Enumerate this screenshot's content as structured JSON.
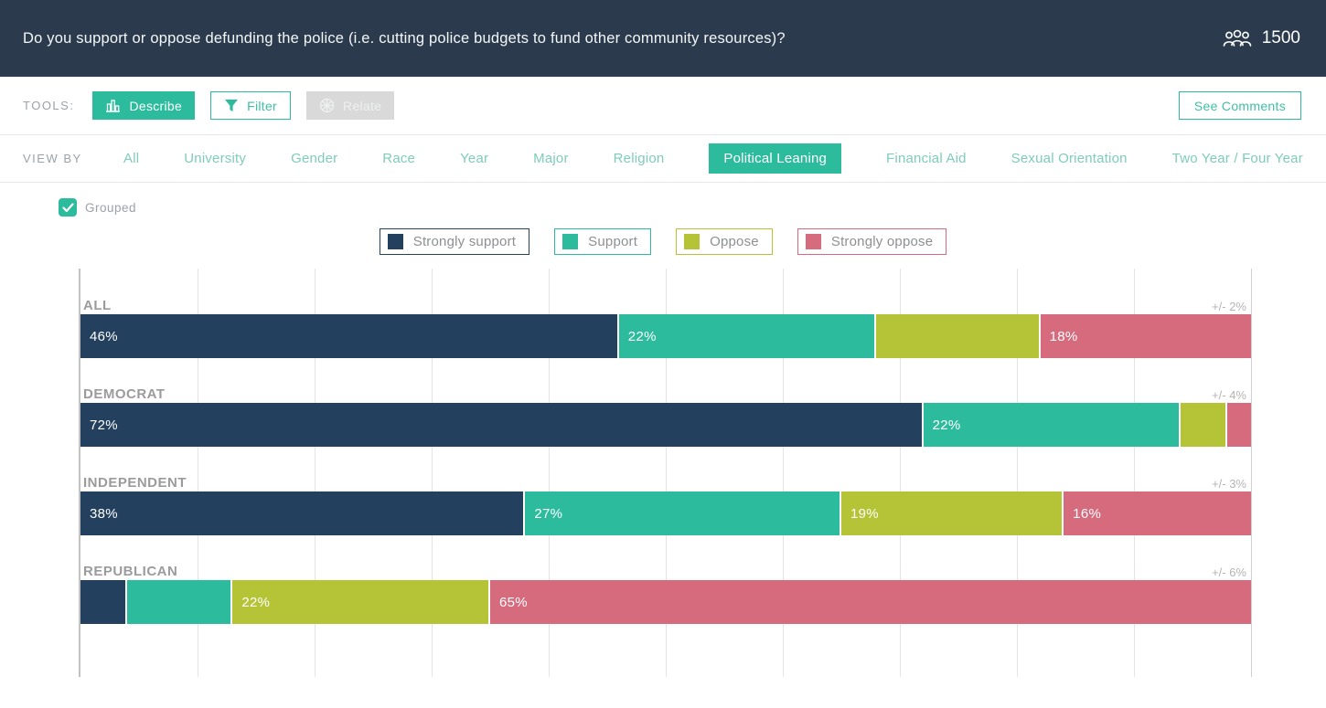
{
  "header": {
    "question": "Do you support or oppose defunding the police (i.e. cutting police budgets to fund other community resources)?",
    "respondent_count": "1500"
  },
  "toolbar": {
    "label": "TOOLS:",
    "describe": {
      "label": "Describe",
      "state": "active"
    },
    "filter": {
      "label": "Filter",
      "state": "enabled"
    },
    "relate": {
      "label": "Relate",
      "state": "disabled"
    },
    "see_comments": {
      "label": "See Comments"
    }
  },
  "view_by": {
    "label": "VIEW BY",
    "options": [
      {
        "label": "All",
        "selected": false
      },
      {
        "label": "University",
        "selected": false
      },
      {
        "label": "Gender",
        "selected": false
      },
      {
        "label": "Race",
        "selected": false
      },
      {
        "label": "Year",
        "selected": false
      },
      {
        "label": "Major",
        "selected": false
      },
      {
        "label": "Religion",
        "selected": false
      },
      {
        "label": "Political Leaning",
        "selected": true
      },
      {
        "label": "Financial Aid",
        "selected": false
      },
      {
        "label": "Sexual Orientation",
        "selected": false
      },
      {
        "label": "Two Year / Four Year",
        "selected": false
      }
    ]
  },
  "grouped_checkbox": {
    "label": "Grouped",
    "checked": true
  },
  "colors": {
    "header_bg": "#2b3b4d",
    "accent_teal": "#2cbc9d",
    "strongly_support": "#23415e",
    "support": "#2cbc9d",
    "oppose": "#b5c336",
    "strongly_oppose": "#d76b7e"
  },
  "chart_data": {
    "type": "bar",
    "subtype": "horizontal-stacked",
    "unit": "%",
    "axis": {
      "min": 0,
      "max": 100,
      "gridline_step": 10,
      "grid": true
    },
    "legend_position": "top-center",
    "legend": [
      {
        "label": "Strongly support",
        "color": "#23415e"
      },
      {
        "label": "Support",
        "color": "#2cbc9d"
      },
      {
        "label": "Oppose",
        "color": "#b5c336"
      },
      {
        "label": "Strongly oppose",
        "color": "#d76b7e"
      }
    ],
    "rows": [
      {
        "category": "ALL",
        "margin_of_error": "+/- 2%",
        "values": [
          {
            "segment": "Strongly support",
            "value": 46,
            "label": "46%"
          },
          {
            "segment": "Support",
            "value": 22,
            "label": "22%"
          },
          {
            "segment": "Oppose",
            "value": 14,
            "label": ""
          },
          {
            "segment": "Strongly oppose",
            "value": 18,
            "label": "18%"
          }
        ]
      },
      {
        "category": "DEMOCRAT",
        "margin_of_error": "+/- 4%",
        "values": [
          {
            "segment": "Strongly support",
            "value": 72,
            "label": "72%"
          },
          {
            "segment": "Support",
            "value": 22,
            "label": "22%"
          },
          {
            "segment": "Oppose",
            "value": 4,
            "label": ""
          },
          {
            "segment": "Strongly oppose",
            "value": 2,
            "label": ""
          }
        ]
      },
      {
        "category": "INDEPENDENT",
        "margin_of_error": "+/- 3%",
        "values": [
          {
            "segment": "Strongly support",
            "value": 38,
            "label": "38%"
          },
          {
            "segment": "Support",
            "value": 27,
            "label": "27%"
          },
          {
            "segment": "Oppose",
            "value": 19,
            "label": "19%"
          },
          {
            "segment": "Strongly oppose",
            "value": 16,
            "label": "16%"
          }
        ]
      },
      {
        "category": "REPUBLICAN",
        "margin_of_error": "+/- 6%",
        "values": [
          {
            "segment": "Strongly support",
            "value": 4,
            "label": ""
          },
          {
            "segment": "Support",
            "value": 9,
            "label": ""
          },
          {
            "segment": "Oppose",
            "value": 22,
            "label": "22%"
          },
          {
            "segment": "Strongly oppose",
            "value": 65,
            "label": "65%"
          }
        ]
      }
    ]
  }
}
